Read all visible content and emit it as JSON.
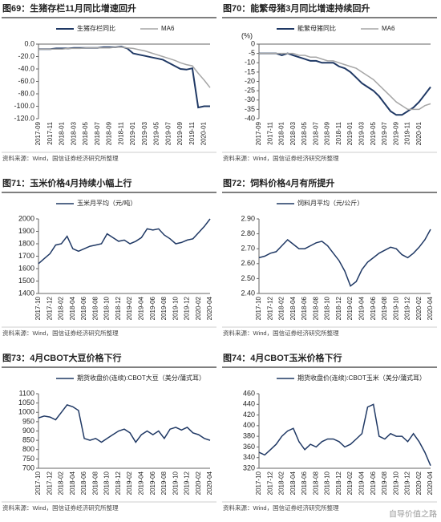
{
  "chart_data": [
    {
      "type": "line",
      "title": "图69：生猪存栏11月同比增速回升",
      "source": "资料来源：Wind，国信证券经济研究所整理",
      "legend": "top",
      "categories": [
        "2017-09",
        null,
        "2017-11",
        null,
        "2018-01",
        null,
        "2018-03",
        null,
        "2018-05",
        null,
        "2018-07",
        null,
        "2018-09",
        null,
        "2018-11",
        null,
        "2019-01",
        null,
        "2019-03",
        null,
        "2019-05",
        null,
        "2019-07",
        null,
        "2019-09",
        null,
        "2019-11",
        null,
        "2020-01",
        null
      ],
      "series": [
        {
          "name": "生猪存栏同比",
          "color": "#1f3864",
          "width": 2,
          "values": [
            -8,
            -8,
            -8,
            -7,
            -7,
            -7,
            -6,
            -6,
            -6,
            -6,
            -6,
            -5,
            -5,
            -5,
            -4,
            -7,
            -15,
            -17,
            -19,
            -21,
            -23,
            -25,
            -30,
            -35,
            -40,
            -41,
            -39,
            -102,
            -100,
            -100
          ]
        },
        {
          "name": "MA6",
          "color": "#a6a6a6",
          "width": 1.5,
          "values": [
            -8,
            -8,
            -8,
            -8,
            -8,
            -7,
            -7,
            -7,
            -6,
            -6,
            -6,
            -6,
            -6,
            -5,
            -5,
            -6,
            -7,
            -9,
            -11,
            -14,
            -17,
            -20,
            -23,
            -26,
            -30,
            -33,
            -35,
            -47,
            -58,
            -70
          ]
        }
      ],
      "ylim": [
        -120,
        0
      ],
      "yticks": [
        {
          "value": 0,
          "label": "0.0"
        },
        {
          "value": -20,
          "label": "-20.0"
        },
        {
          "value": -40,
          "label": "-40.0"
        },
        {
          "value": -60,
          "label": "-60.0"
        },
        {
          "value": -80,
          "label": "-80.0"
        },
        {
          "value": -100,
          "label": "-100.0"
        },
        {
          "value": -120,
          "label": "-120.0"
        }
      ]
    },
    {
      "type": "line",
      "title": "图70：能繁母猪3月同比增速持续回升",
      "source": "资料来源：Wind，国信证券经济研究所整理",
      "legend": "top",
      "y_unit": "(%)",
      "categories": [
        "2017-09",
        null,
        "2017-11",
        null,
        "2018-01",
        null,
        "2018-03",
        null,
        "2018-05",
        null,
        "2018-07",
        null,
        "2018-09",
        null,
        "2018-11",
        null,
        "2019-01",
        null,
        "2019-03",
        null,
        "2019-05",
        null,
        "2019-07",
        null,
        "2019-09",
        null,
        "2019-11",
        null,
        "2020-01",
        null,
        null
      ],
      "series": [
        {
          "name": "能繁母猪同比",
          "color": "#1f3864",
          "width": 2,
          "values": [
            -5,
            -5,
            -5,
            -5,
            -6,
            -5,
            -6,
            -7,
            -8,
            -9,
            -9,
            -10,
            -10,
            -10,
            -12,
            -13,
            -15,
            -18,
            -21,
            -23,
            -25,
            -28,
            -32,
            -36,
            -38,
            -38,
            -36,
            -34,
            -31,
            -27,
            -23
          ]
        },
        {
          "name": "MA6",
          "color": "#a6a6a6",
          "width": 1.5,
          "values": [
            -5,
            -5,
            -5,
            -5,
            -5,
            -5,
            -5,
            -6,
            -6,
            -7,
            -7,
            -8,
            -9,
            -9,
            -10,
            -11,
            -12,
            -13,
            -15,
            -17,
            -19,
            -22,
            -25,
            -28,
            -31,
            -33,
            -35,
            -35,
            -35,
            -33,
            -32
          ]
        }
      ],
      "ylim": [
        -40,
        0
      ],
      "yticks": [
        0,
        -5,
        -10,
        -15,
        -20,
        -25,
        -30,
        -35,
        -40
      ]
    },
    {
      "type": "line",
      "title": "图71：玉米价格4月持续小幅上行",
      "source": "资料来源：Wind，国信证券经济研究所整理",
      "legend": "top",
      "categories": [
        "2017-10",
        null,
        "2017-12",
        null,
        "2018-02",
        null,
        "2018-04",
        null,
        "2018-06",
        null,
        "2018-08",
        null,
        "2018-10",
        null,
        "2018-12",
        null,
        "2019-02",
        null,
        "2019-04",
        null,
        "2019-06",
        null,
        "2019-08",
        null,
        "2019-10",
        null,
        "2019-12",
        null,
        "2020-02",
        null,
        "2020-04"
      ],
      "series": [
        {
          "name": "玉米月平均（元/吨）",
          "color": "#1f3864",
          "width": 1.5,
          "values": [
            1640,
            1680,
            1720,
            1790,
            1800,
            1860,
            1760,
            1740,
            1760,
            1780,
            1790,
            1800,
            1880,
            1850,
            1820,
            1830,
            1800,
            1820,
            1850,
            1920,
            1910,
            1920,
            1870,
            1840,
            1800,
            1810,
            1830,
            1840,
            1890,
            1940,
            2000
          ]
        }
      ],
      "ylim": [
        1400,
        2000
      ],
      "yticks": [
        1400,
        1500,
        1600,
        1700,
        1800,
        1900,
        2000
      ]
    },
    {
      "type": "line",
      "title": "图72：饲料价格4月有所提升",
      "source": "资料来源：Wind，国信证券经济研究所整理",
      "legend": "top",
      "categories": [
        "2017-10",
        null,
        "2017-12",
        null,
        "2018-02",
        null,
        "2018-04",
        null,
        "2018-06",
        null,
        "2018-08",
        null,
        "2018-10",
        null,
        "2018-12",
        null,
        "2019-02",
        null,
        "2019-04",
        null,
        "2019-06",
        null,
        "2019-08",
        null,
        "2019-10",
        null,
        "2019-12",
        null,
        "2020-02",
        null,
        "2020-04"
      ],
      "series": [
        {
          "name": "饲料月平均（元/公斤）",
          "color": "#1f3864",
          "width": 1.5,
          "values": [
            2.64,
            2.65,
            2.67,
            2.68,
            2.72,
            2.76,
            2.73,
            2.7,
            2.7,
            2.72,
            2.74,
            2.75,
            2.72,
            2.67,
            2.62,
            2.55,
            2.45,
            2.48,
            2.56,
            2.61,
            2.64,
            2.67,
            2.69,
            2.71,
            2.7,
            2.66,
            2.64,
            2.67,
            2.71,
            2.76,
            2.83
          ]
        }
      ],
      "ylim": [
        2.4,
        2.9
      ],
      "yticks": [
        {
          "value": 2.4,
          "label": "2.40"
        },
        {
          "value": 2.5,
          "label": "2.50"
        },
        {
          "value": 2.6,
          "label": "2.60"
        },
        {
          "value": 2.7,
          "label": "2.70"
        },
        {
          "value": 2.8,
          "label": "2.80"
        },
        {
          "value": 2.9,
          "label": "2.90"
        }
      ]
    },
    {
      "type": "line",
      "title": "图73：4月CBOT大豆价格下行",
      "source": "资料来源：Wind，国信证券经济研究所整理",
      "legend": "top",
      "categories": [
        "2017-10",
        null,
        "2017-12",
        null,
        "2018-02",
        null,
        "2018-04",
        null,
        "2018-06",
        null,
        "2018-08",
        null,
        "2018-10",
        null,
        "2018-12",
        null,
        "2019-02",
        null,
        "2019-04",
        null,
        "2019-06",
        null,
        "2019-08",
        null,
        "2019-10",
        null,
        "2019-12",
        null,
        "2020-02",
        null,
        "2020-04"
      ],
      "series": [
        {
          "name": "期货收盘价(连续):CBOT大豆（美分/蒲式耳）",
          "color": "#1f3864",
          "width": 1.5,
          "values": [
            970,
            980,
            975,
            960,
            1000,
            1040,
            1030,
            1010,
            860,
            850,
            860,
            840,
            860,
            880,
            900,
            910,
            890,
            840,
            880,
            900,
            880,
            900,
            860,
            910,
            920,
            905,
            920,
            890,
            880,
            860,
            850
          ]
        }
      ],
      "ylim": [
        700,
        1100
      ],
      "yticks": [
        700,
        750,
        800,
        850,
        900,
        950,
        1000,
        1050,
        1100
      ]
    },
    {
      "type": "line",
      "title": "图74：4月CBOT玉米价格下行",
      "source": "资料来源：Wind，国信证券经济研究所整理",
      "legend": "top",
      "categories": [
        "2017-10",
        null,
        "2017-12",
        null,
        "2018-02",
        null,
        "2018-04",
        null,
        "2018-06",
        null,
        "2018-08",
        null,
        "2018-10",
        null,
        "2018-12",
        null,
        "2019-02",
        null,
        "2019-04",
        null,
        "2019-06",
        null,
        "2019-08",
        null,
        "2019-10",
        null,
        "2019-12",
        null,
        "2020-02",
        null,
        "2020-04"
      ],
      "series": [
        {
          "name": "期货收盘价(连续):CBOT玉米（美分/蒲式耳）",
          "color": "#1f3864",
          "width": 1.5,
          "values": [
            350,
            345,
            355,
            365,
            380,
            390,
            395,
            370,
            355,
            365,
            360,
            370,
            375,
            375,
            370,
            360,
            365,
            375,
            385,
            435,
            440,
            380,
            375,
            385,
            380,
            380,
            370,
            385,
            370,
            350,
            325
          ]
        }
      ],
      "ylim": [
        320,
        460
      ],
      "yticks": [
        320,
        340,
        360,
        380,
        400,
        420,
        440,
        460
      ]
    }
  ],
  "watermark": "自导价值之路"
}
